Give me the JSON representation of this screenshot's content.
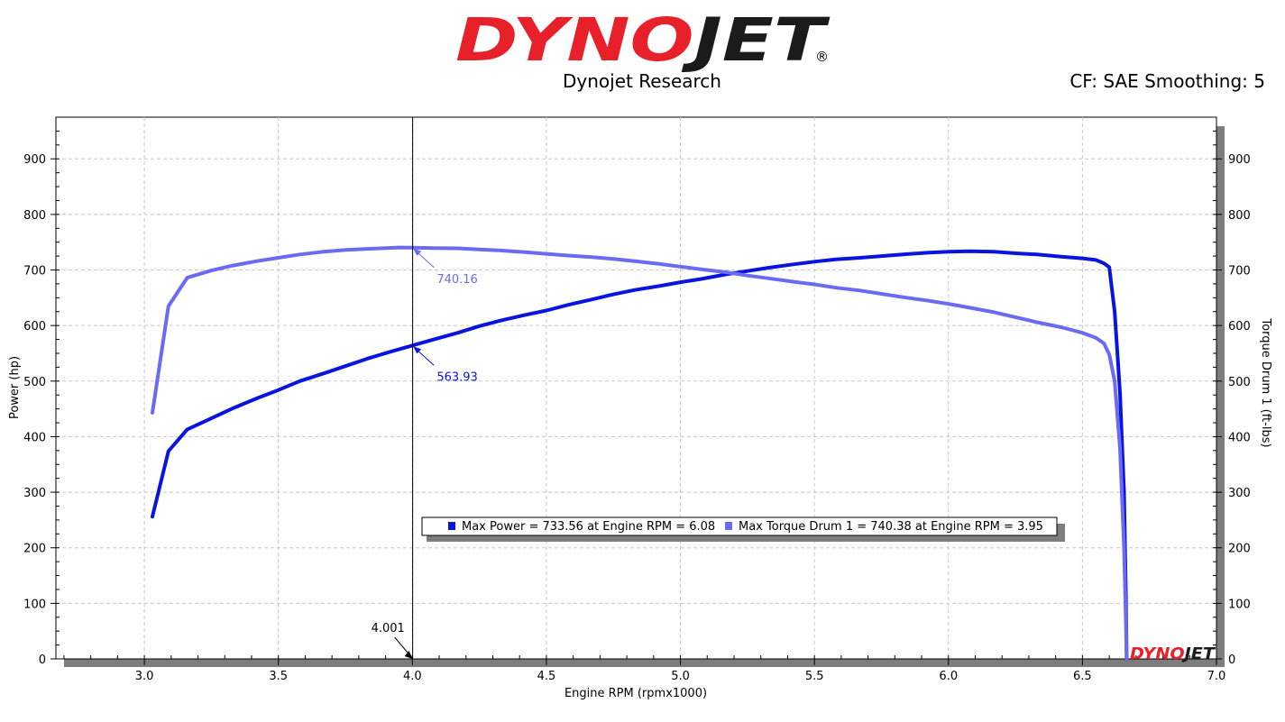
{
  "header": {
    "brand": "DYNOJET",
    "registered": "®",
    "company": "Dynojet Research",
    "settings": "CF: SAE Smoothing: 5"
  },
  "watermark": "DYNOJET",
  "colors": {
    "brand_red": "#e8202a",
    "brand_dark": "#1b1b1b",
    "power": "#0a14e0",
    "torque": "#6a6af2"
  },
  "chart_data": {
    "type": "line",
    "xlabel": "Engine RPM (rpmx1000)",
    "ylabel": "Power (hp)",
    "y2label": "Torque Drum 1 (ft-lbs)",
    "xlim": [
      2.67,
      7.0
    ],
    "ylim": [
      0,
      975
    ],
    "y2lim": [
      0,
      975
    ],
    "xticks": [
      "3.0",
      "3.5",
      "4.0",
      "4.5",
      "5.0",
      "5.5",
      "6.0",
      "6.5",
      "7.0"
    ],
    "yticks": [
      "0",
      "100",
      "200",
      "300",
      "400",
      "500",
      "600",
      "700",
      "800",
      "900"
    ],
    "grid": true,
    "cursor": {
      "x": 4.001,
      "label": "4.001"
    },
    "series": [
      {
        "name": "Max Power = 733.56 at Engine RPM = 6.08",
        "axis": "left",
        "color": "#0a14e0",
        "points": [
          [
            3.03,
            256
          ],
          [
            3.09,
            374
          ],
          [
            3.16,
            413
          ],
          [
            3.25,
            433
          ],
          [
            3.33,
            451
          ],
          [
            3.42,
            469
          ],
          [
            3.5,
            484
          ],
          [
            3.58,
            500
          ],
          [
            3.67,
            514
          ],
          [
            3.75,
            527
          ],
          [
            3.83,
            540
          ],
          [
            3.92,
            553
          ],
          [
            4.0,
            564
          ],
          [
            4.08,
            575
          ],
          [
            4.17,
            587
          ],
          [
            4.25,
            599
          ],
          [
            4.33,
            609
          ],
          [
            4.42,
            619
          ],
          [
            4.5,
            627
          ],
          [
            4.58,
            637
          ],
          [
            4.67,
            647
          ],
          [
            4.75,
            656
          ],
          [
            4.83,
            664
          ],
          [
            4.92,
            671
          ],
          [
            5.0,
            678
          ],
          [
            5.08,
            684
          ],
          [
            5.17,
            692
          ],
          [
            5.25,
            698
          ],
          [
            5.33,
            704
          ],
          [
            5.42,
            710
          ],
          [
            5.5,
            715
          ],
          [
            5.58,
            719
          ],
          [
            5.67,
            722
          ],
          [
            5.75,
            725
          ],
          [
            5.83,
            728
          ],
          [
            5.92,
            731
          ],
          [
            6.0,
            733
          ],
          [
            6.08,
            733.6
          ],
          [
            6.17,
            733
          ],
          [
            6.25,
            730
          ],
          [
            6.33,
            728
          ],
          [
            6.42,
            724
          ],
          [
            6.5,
            721
          ],
          [
            6.55,
            718
          ],
          [
            6.58,
            712
          ],
          [
            6.6,
            705
          ],
          [
            6.62,
            625
          ],
          [
            6.64,
            480
          ],
          [
            6.655,
            300
          ],
          [
            6.662,
            120
          ],
          [
            6.665,
            0
          ]
        ]
      },
      {
        "name": "Max Torque Drum 1 = 740.38 at Engine RPM = 3.95",
        "axis": "right",
        "color": "#6a6af2",
        "points": [
          [
            3.03,
            443
          ],
          [
            3.09,
            635
          ],
          [
            3.16,
            686
          ],
          [
            3.25,
            699
          ],
          [
            3.33,
            708
          ],
          [
            3.42,
            716
          ],
          [
            3.5,
            722
          ],
          [
            3.58,
            728
          ],
          [
            3.67,
            733
          ],
          [
            3.75,
            736
          ],
          [
            3.83,
            738
          ],
          [
            3.95,
            740.4
          ],
          [
            4.0,
            740.2
          ],
          [
            4.08,
            739.5
          ],
          [
            4.17,
            739
          ],
          [
            4.25,
            737
          ],
          [
            4.33,
            735
          ],
          [
            4.42,
            732
          ],
          [
            4.5,
            729
          ],
          [
            4.58,
            726
          ],
          [
            4.67,
            723
          ],
          [
            4.75,
            720
          ],
          [
            4.83,
            716
          ],
          [
            4.92,
            711
          ],
          [
            5.0,
            706
          ],
          [
            5.08,
            701
          ],
          [
            5.17,
            696
          ],
          [
            5.25,
            690
          ],
          [
            5.33,
            685
          ],
          [
            5.42,
            679
          ],
          [
            5.5,
            674
          ],
          [
            5.58,
            668
          ],
          [
            5.67,
            663
          ],
          [
            5.75,
            657
          ],
          [
            5.83,
            651
          ],
          [
            5.92,
            645
          ],
          [
            6.0,
            639
          ],
          [
            6.08,
            632
          ],
          [
            6.17,
            624
          ],
          [
            6.25,
            615
          ],
          [
            6.33,
            606
          ],
          [
            6.42,
            597
          ],
          [
            6.5,
            587
          ],
          [
            6.55,
            578
          ],
          [
            6.58,
            568
          ],
          [
            6.6,
            548
          ],
          [
            6.62,
            500
          ],
          [
            6.64,
            380
          ],
          [
            6.655,
            200
          ],
          [
            6.662,
            70
          ],
          [
            6.665,
            0
          ]
        ]
      }
    ],
    "annotations": [
      {
        "series": 0,
        "x": 4.0,
        "y": 563.93,
        "text": "563.93"
      },
      {
        "series": 1,
        "x": 4.0,
        "y": 740.16,
        "text": "740.16"
      }
    ],
    "legend": {
      "position": "center-bottom",
      "items": [
        "Max Power = 733.56 at Engine RPM = 6.08",
        "Max Torque Drum 1 = 740.38 at Engine RPM = 3.95"
      ]
    }
  }
}
